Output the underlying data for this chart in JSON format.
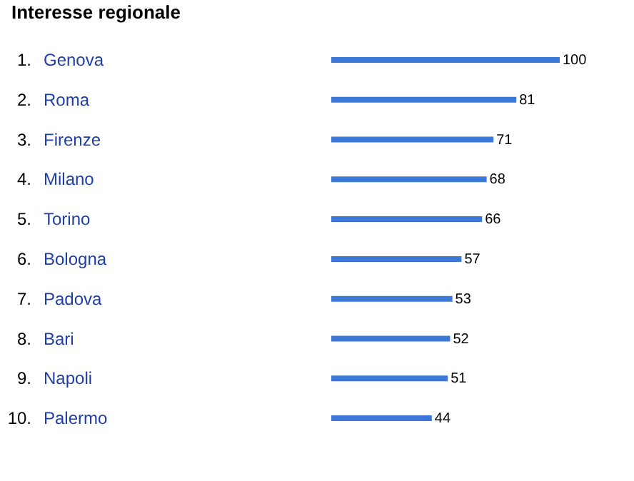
{
  "chart_data": {
    "type": "bar",
    "orientation": "horizontal",
    "title": "Interesse regionale",
    "categories": [
      "Genova",
      "Roma",
      "Firenze",
      "Milano",
      "Torino",
      "Bologna",
      "Padova",
      "Bari",
      "Napoli",
      "Palermo"
    ],
    "values": [
      100,
      81,
      71,
      68,
      66,
      57,
      53,
      52,
      51,
      44
    ],
    "color": "#3b78d8",
    "data_labels": true,
    "annotations": [
      "1.",
      "2.",
      "3.",
      "4.",
      "5.",
      "6.",
      "7.",
      "8.",
      "9.",
      "10."
    ]
  }
}
